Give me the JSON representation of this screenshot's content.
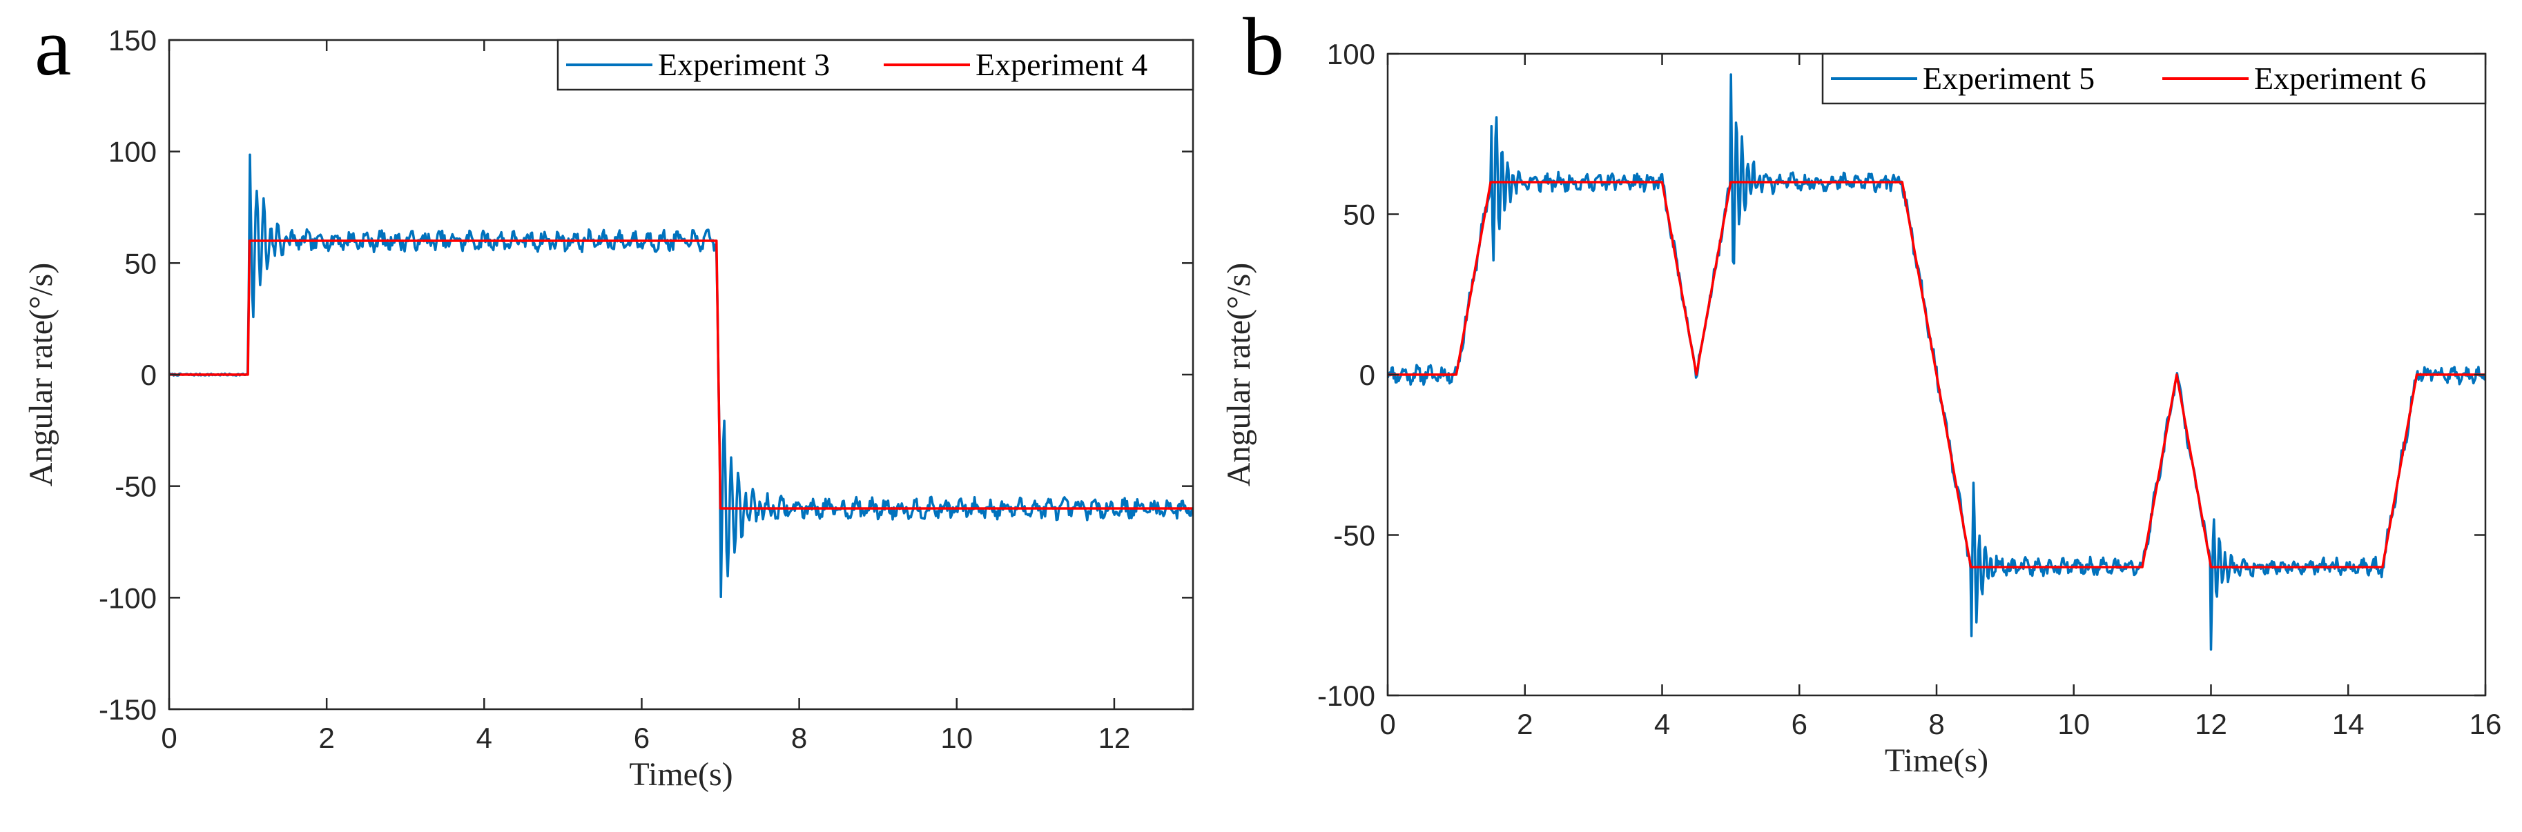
{
  "chart_data": [
    {
      "type": "line",
      "panel_label": "a",
      "title": "",
      "xlabel": "Time(s)",
      "ylabel": "Angular rate(°/s)",
      "xlim": [
        0,
        13
      ],
      "ylim": [
        -150,
        150
      ],
      "xticks": [
        0,
        2,
        4,
        6,
        8,
        10,
        12
      ],
      "yticks": [
        -150,
        -100,
        -50,
        0,
        50,
        100,
        150
      ],
      "grid": false,
      "legend_position": "top-right",
      "series": [
        {
          "name": "Experiment 3",
          "color": "#0072BD",
          "kind": "noisy",
          "seed": 7,
          "samples": 900,
          "setpoints": [
            [
              0,
              0
            ],
            [
              1,
              0
            ],
            [
              1.02,
              60
            ],
            [
              6.95,
              60
            ],
            [
              7.0,
              -60
            ],
            [
              13,
              -60
            ]
          ],
          "noise": [
            {
              "t": 1.02,
              "amp": 42,
              "decay": 0.18,
              "freq": 11
            },
            {
              "t": 7.0,
              "amp": -48,
              "decay": 0.2,
              "freq": 11
            }
          ],
          "ripple_amp": 4.2,
          "ripple_start": 1.0
        },
        {
          "name": "Experiment 4",
          "color": "#FF0000",
          "kind": "step",
          "x": [
            0,
            1,
            1.02,
            6.95,
            7.0,
            13
          ],
          "y": [
            0,
            0,
            60,
            60,
            -60,
            -60
          ]
        }
      ]
    },
    {
      "type": "line",
      "panel_label": "b",
      "title": "",
      "xlabel": "Time(s)",
      "ylabel": "Angular rate(°/s)",
      "xlim": [
        0,
        16
      ],
      "ylim": [
        -100,
        100
      ],
      "xticks": [
        0,
        2,
        4,
        6,
        8,
        10,
        12,
        14,
        16
      ],
      "yticks": [
        -100,
        -50,
        0,
        50,
        100
      ],
      "grid": false,
      "legend_position": "top-right",
      "series": [
        {
          "name": "Experiment 5",
          "color": "#0072BD",
          "kind": "noisy",
          "seed": 11,
          "samples": 1100,
          "setpoints": [
            [
              0,
              0
            ],
            [
              1,
              0
            ],
            [
              1.5,
              60
            ],
            [
              4,
              60
            ],
            [
              4.5,
              0
            ],
            [
              5,
              60
            ],
            [
              7.5,
              60
            ],
            [
              8.5,
              -60
            ],
            [
              11,
              -60
            ],
            [
              11.5,
              0
            ],
            [
              12,
              -60
            ],
            [
              14.5,
              -60
            ],
            [
              15,
              0
            ],
            [
              16,
              0
            ]
          ],
          "noise": [
            {
              "t": 1.5,
              "amp": 34,
              "decay": 0.15,
              "freq": 12
            },
            {
              "t": 5.0,
              "amp": 36,
              "decay": 0.15,
              "freq": 12
            },
            {
              "t": 8.5,
              "amp": -33,
              "decay": 0.12,
              "freq": 12
            },
            {
              "t": 12.0,
              "amp": -24,
              "decay": 0.12,
              "freq": 12
            }
          ],
          "ripple_amp": 2.6,
          "ripple_start": 0
        },
        {
          "name": "Experiment 6",
          "color": "#FF0000",
          "kind": "step",
          "x": [
            0,
            1,
            1.5,
            4,
            4.5,
            5,
            7.5,
            8.5,
            11,
            11.5,
            12,
            14.5,
            15,
            16
          ],
          "y": [
            0,
            0,
            60,
            60,
            0,
            60,
            60,
            -60,
            -60,
            0,
            -60,
            -60,
            0,
            0
          ]
        }
      ]
    }
  ]
}
